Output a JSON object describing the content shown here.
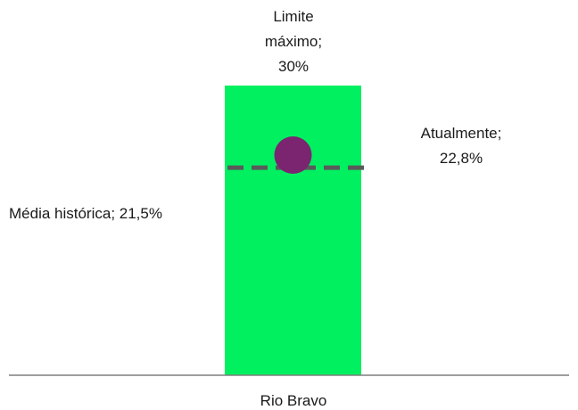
{
  "chart_data": {
    "type": "bar",
    "categories": [
      "Rio Bravo"
    ],
    "series": [
      {
        "name": "Limite máximo",
        "values": [
          30
        ]
      },
      {
        "name": "Atualmente",
        "values": [
          22.8
        ]
      },
      {
        "name": "Média histórica",
        "values": [
          21.5
        ]
      }
    ],
    "annotations": {
      "max_limit": [
        "Limite",
        "máximo;",
        "30%"
      ],
      "current": [
        "Atualmente;",
        "22,8%"
      ],
      "historical_average": "Média histórica; 21,5%"
    },
    "ylim": [
      0,
      30
    ],
    "grid": false,
    "legend": "none",
    "colors": {
      "bar": "#00f060",
      "current_marker": "#7b2470",
      "average_line": "#5a5a5a",
      "baseline": "#7f7f7f"
    }
  }
}
